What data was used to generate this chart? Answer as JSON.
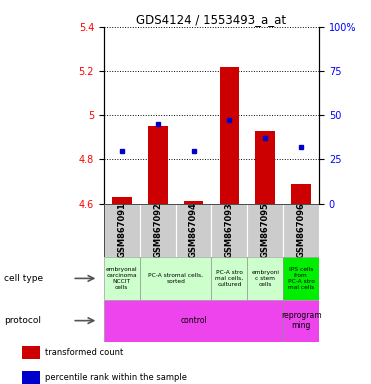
{
  "title": "GDS4124 / 1553493_a_at",
  "samples": [
    "GSM867091",
    "GSM867092",
    "GSM867094",
    "GSM867093",
    "GSM867095",
    "GSM867096"
  ],
  "transformed_counts": [
    4.63,
    4.95,
    4.61,
    5.22,
    4.93,
    4.69
  ],
  "percentile_ranks": [
    30,
    45,
    30,
    47,
    37,
    32
  ],
  "ylim_left": [
    4.6,
    5.4
  ],
  "ylim_right": [
    0,
    100
  ],
  "yticks_left": [
    4.6,
    4.8,
    5.0,
    5.2,
    5.4
  ],
  "yticks_right": [
    0,
    25,
    50,
    75,
    100
  ],
  "ytick_labels_right": [
    "0",
    "25",
    "50",
    "75",
    "100%"
  ],
  "bar_color": "#cc0000",
  "dot_color": "#0000cc",
  "bar_base": 4.6,
  "cell_type_data": [
    [
      0,
      1,
      "embryonal\ncarcinoma\nNCCIT\ncells"
    ],
    [
      1,
      3,
      "PC-A stromal cells,\nsorted"
    ],
    [
      3,
      4,
      "PC-A stro\nmal cells,\ncultured"
    ],
    [
      4,
      5,
      "embryoni\nc stem\ncells"
    ],
    [
      5,
      6,
      "IPS cells\nfrom\nPC-A stro\nmal cells"
    ]
  ],
  "cell_type_bg": "#ccffcc",
  "last_cell_type_bg": "#00ee00",
  "protocol_data": [
    [
      0,
      5,
      "control"
    ],
    [
      5,
      6,
      "reprogram\nming"
    ]
  ],
  "protocol_color": "#ee44ee",
  "sample_label_bg": "#cccccc",
  "legend_items": [
    {
      "color": "#cc0000",
      "label": "transformed count"
    },
    {
      "color": "#0000cc",
      "label": "percentile rank within the sample"
    }
  ]
}
